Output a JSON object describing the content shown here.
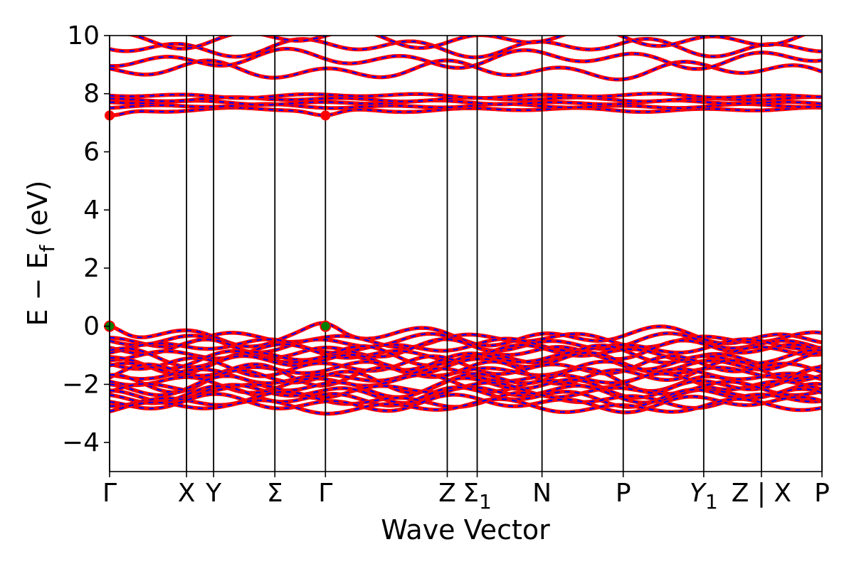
{
  "chart_data": {
    "type": "line",
    "title": "",
    "xlabel": "Wave Vector",
    "ylabel": "E − E_f (eV)",
    "ylabel_parts": {
      "main": "E − E",
      "sub": "f",
      "unit": " (eV)"
    },
    "ylim": [
      -5,
      10
    ],
    "yticks": [
      -4,
      -2,
      0,
      2,
      4,
      6,
      8,
      10
    ],
    "ytick_labels": [
      "−4",
      "−2",
      "0",
      "2",
      "4",
      "6",
      "8",
      "10"
    ],
    "x_range": [
      0,
      1
    ],
    "kpoints": [
      {
        "label": "Γ",
        "x": 0.0
      },
      {
        "label": "X",
        "x": 0.108
      },
      {
        "label": "Y",
        "x": 0.146
      },
      {
        "label": "Σ",
        "x": 0.232
      },
      {
        "label": "Γ",
        "x": 0.303
      },
      {
        "label": "Z",
        "x": 0.474
      },
      {
        "label": "Σ1",
        "x": 0.516
      },
      {
        "label": "N",
        "x": 0.607
      },
      {
        "label": "P",
        "x": 0.721
      },
      {
        "label": "Y1",
        "x": 0.834
      },
      {
        "label": "Z | X",
        "x": 0.915
      },
      {
        "label": "P",
        "x": 1.0
      }
    ],
    "series": [
      {
        "color": "#ff0000",
        "style": "solid"
      },
      {
        "color": "#0000ff",
        "style": "dashed"
      }
    ],
    "highlight_points": [
      {
        "x": 0.0,
        "y": 0.0,
        "color": "#008000"
      },
      {
        "x": 0.303,
        "y": 0.0,
        "color": "#008000"
      }
    ],
    "conduction_band_minimum_eV": 7.25,
    "valence_band_maximum_eV": 0.0,
    "grid": false,
    "legend": "none"
  }
}
